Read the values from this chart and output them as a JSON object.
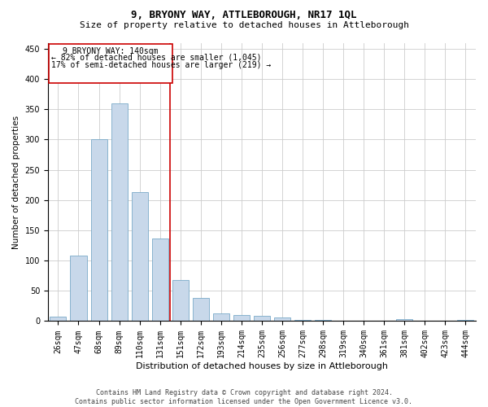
{
  "title": "9, BRYONY WAY, ATTLEBOROUGH, NR17 1QL",
  "subtitle": "Size of property relative to detached houses in Attleborough",
  "xlabel": "Distribution of detached houses by size in Attleborough",
  "ylabel": "Number of detached properties",
  "footer_line1": "Contains HM Land Registry data © Crown copyright and database right 2024.",
  "footer_line2": "Contains public sector information licensed under the Open Government Licence v3.0.",
  "categories": [
    "26sqm",
    "47sqm",
    "68sqm",
    "89sqm",
    "110sqm",
    "131sqm",
    "151sqm",
    "172sqm",
    "193sqm",
    "214sqm",
    "235sqm",
    "256sqm",
    "277sqm",
    "298sqm",
    "319sqm",
    "340sqm",
    "361sqm",
    "381sqm",
    "402sqm",
    "423sqm",
    "444sqm"
  ],
  "values": [
    8,
    108,
    300,
    360,
    213,
    137,
    68,
    38,
    13,
    10,
    9,
    6,
    2,
    2,
    0,
    0,
    0,
    3,
    0,
    0,
    2
  ],
  "bar_color": "#c8d8ea",
  "bar_edge_color": "#7aaac8",
  "annotation_text_line1": "9 BRYONY WAY: 140sqm",
  "annotation_text_line2": "← 82% of detached houses are smaller (1,045)",
  "annotation_text_line3": "17% of semi-detached houses are larger (219) →",
  "annotation_box_color": "#ffffff",
  "annotation_border_color": "#cc0000",
  "vline_color": "#cc0000",
  "vline_bin_index": 5,
  "ylim": [
    0,
    460
  ],
  "yticks": [
    0,
    50,
    100,
    150,
    200,
    250,
    300,
    350,
    400,
    450
  ],
  "title_fontsize": 9,
  "subtitle_fontsize": 8,
  "xlabel_fontsize": 8,
  "ylabel_fontsize": 7.5,
  "tick_fontsize": 7,
  "annotation_fontsize": 7,
  "footer_fontsize": 6
}
